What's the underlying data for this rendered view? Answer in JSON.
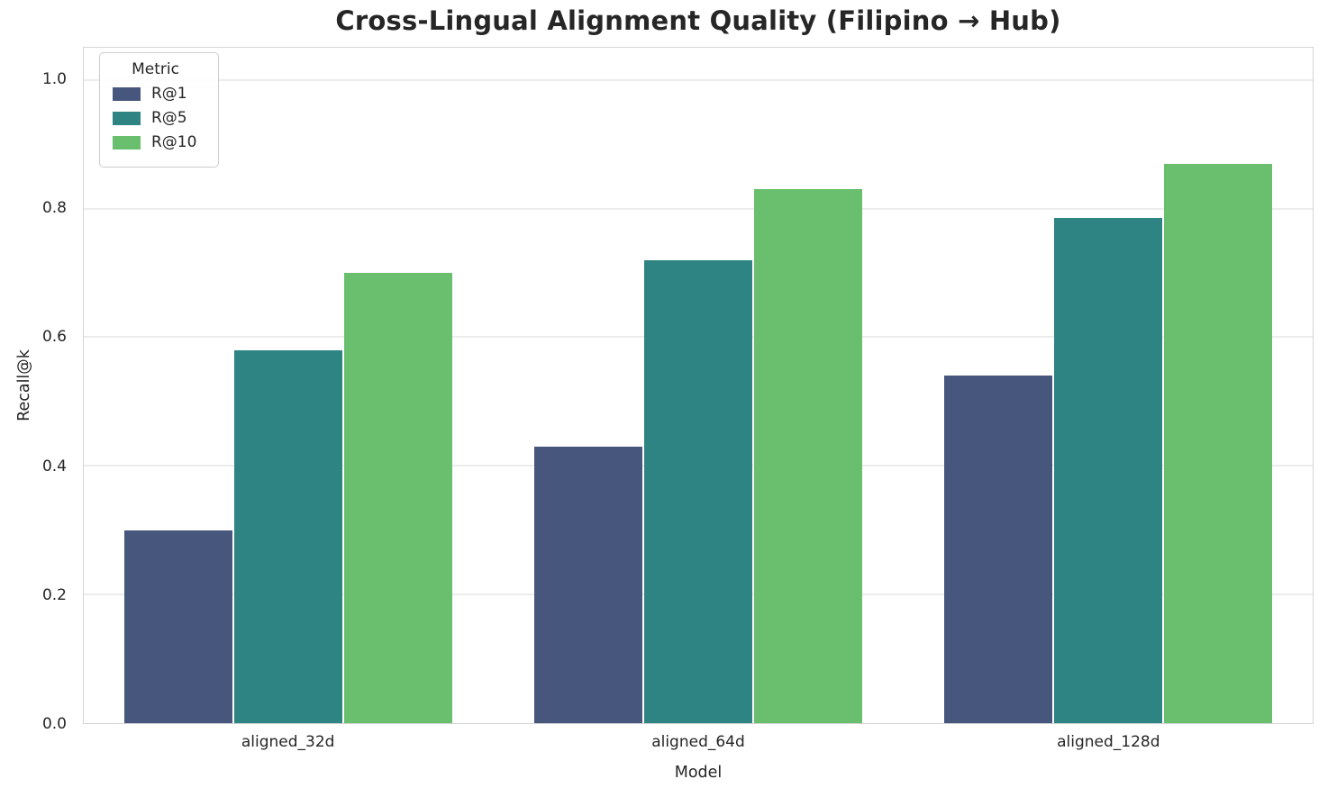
{
  "figure": {
    "background": "#ffffff",
    "text_color": "#262626",
    "grid_color": "#ececec",
    "spine_color": "#d4d4d4"
  },
  "chart_data": {
    "type": "bar",
    "title": "Cross-Lingual Alignment Quality (Filipino → Hub)",
    "xlabel": "Model",
    "ylabel": "Recall@k",
    "categories": [
      "aligned_32d",
      "aligned_64d",
      "aligned_128d"
    ],
    "series": [
      {
        "name": "R@1",
        "color": "#46567d",
        "values": [
          0.3,
          0.43,
          0.54
        ]
      },
      {
        "name": "R@5",
        "color": "#2e8482",
        "values": [
          0.58,
          0.72,
          0.785
        ]
      },
      {
        "name": "R@10",
        "color": "#69bf6d",
        "values": [
          0.7,
          0.83,
          0.87
        ]
      }
    ],
    "ylim": [
      0,
      1.05
    ],
    "yticks": [
      0.0,
      0.2,
      0.4,
      0.6,
      0.8,
      1.0
    ],
    "ytick_labels": [
      "0.0",
      "0.2",
      "0.4",
      "0.6",
      "0.8",
      "1.0"
    ],
    "grid": true,
    "legend": {
      "title": "Metric",
      "position": "upper left"
    }
  }
}
